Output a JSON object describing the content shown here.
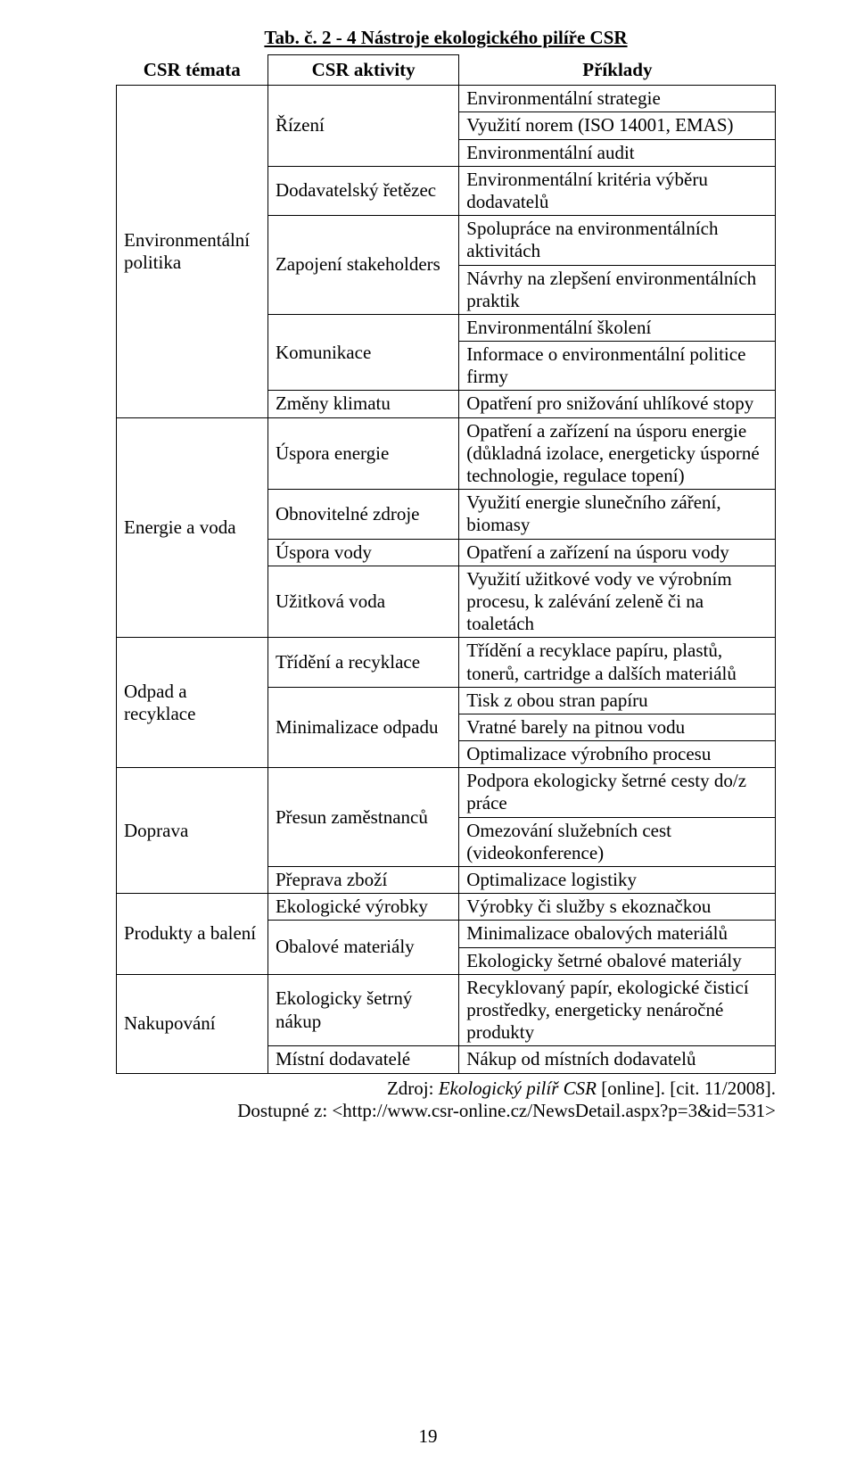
{
  "title": "Tab. č. 2 - 4 Nástroje ekologického pilíře CSR",
  "headers": {
    "c1": "CSR témata",
    "c2": "CSR aktivity",
    "c3": "Příklady"
  },
  "rows": [
    {
      "c1": "Environmentální politika",
      "c1_rowspan": 9,
      "c2": "Řízení",
      "c2_rowspan": 3,
      "c3": "Environmentální strategie"
    },
    {
      "c3": "Využití norem (ISO 14001, EMAS)"
    },
    {
      "c3": "Environmentální audit"
    },
    {
      "c2": "Dodavatelský řetězec",
      "c2_rowspan": 1,
      "c3": "Environmentální kritéria výběru dodavatelů"
    },
    {
      "c2": "Zapojení stakeholders",
      "c2_rowspan": 2,
      "c3": "Spolupráce na environmentálních aktivitách"
    },
    {
      "c3": "Návrhy na zlepšení environmentálních praktik"
    },
    {
      "c2": "Komunikace",
      "c2_rowspan": 2,
      "c3": "Environmentální školení"
    },
    {
      "c3": "Informace o environmentální politice firmy"
    },
    {
      "c2": "Změny klimatu",
      "c2_rowspan": 1,
      "c3": "Opatření pro snižování uhlíkové stopy"
    },
    {
      "c1": "Energie a voda",
      "c1_rowspan": 4,
      "c2": "Úspora energie",
      "c2_rowspan": 1,
      "c3": "Opatření a zařízení na úsporu energie (důkladná izolace, energeticky úsporné technologie, regulace topení)"
    },
    {
      "c2": "Obnovitelné zdroje",
      "c2_rowspan": 1,
      "c3": "Využití energie slunečního záření, biomasy"
    },
    {
      "c2": "Úspora vody",
      "c2_rowspan": 1,
      "c3": "Opatření a zařízení na úsporu vody"
    },
    {
      "c2": "Užitková voda",
      "c2_rowspan": 1,
      "c3": "Využití užitkové vody ve výrobním procesu, k zalévání zeleně či na toaletách"
    },
    {
      "c1": "Odpad a recyklace",
      "c1_rowspan": 4,
      "c2": "Třídění a recyklace",
      "c2_rowspan": 1,
      "c3": "Třídění a recyklace papíru, plastů, tonerů, cartridge a dalších materiálů"
    },
    {
      "c2": "Minimalizace odpadu",
      "c2_rowspan": 3,
      "c3": "Tisk z obou stran papíru"
    },
    {
      "c3": "Vratné barely na pitnou vodu"
    },
    {
      "c3": "Optimalizace výrobního procesu"
    },
    {
      "c1": "Doprava",
      "c1_rowspan": 3,
      "c2": "Přesun zaměstnanců",
      "c2_rowspan": 2,
      "c3": "Podpora ekologicky šetrné cesty do/z práce"
    },
    {
      "c3": "Omezování služebních cest (videokonference)"
    },
    {
      "c2": "Přeprava zboží",
      "c2_rowspan": 1,
      "c3": "Optimalizace logistiky"
    },
    {
      "c1": "Produkty a balení",
      "c1_rowspan": 3,
      "c2": "Ekologické výrobky",
      "c2_rowspan": 1,
      "c3": "Výrobky či služby s ekoznačkou"
    },
    {
      "c2": "Obalové materiály",
      "c2_rowspan": 2,
      "c3": "Minimalizace obalových materiálů"
    },
    {
      "c3": "Ekologicky šetrné obalové materiály"
    },
    {
      "c1": "Nakupování",
      "c1_rowspan": 2,
      "c2": "Ekologicky šetrný nákup",
      "c2_rowspan": 1,
      "c3": "Recyklovaný papír, ekologické čisticí prostředky, energeticky nenáročné produkty"
    },
    {
      "c2": "Místní dodavatelé",
      "c2_rowspan": 1,
      "c3": "Nákup od místních dodavatelů"
    }
  ],
  "source_prefix": "Zdroj: ",
  "source_italic": "Ekologický pilíř CSR ",
  "source_rest": "[online]. [cit. 11/2008].",
  "source_line2": "Dostupné z: <http://www.csr-online.cz/NewsDetail.aspx?p=3&id=531>",
  "page_number": "19"
}
